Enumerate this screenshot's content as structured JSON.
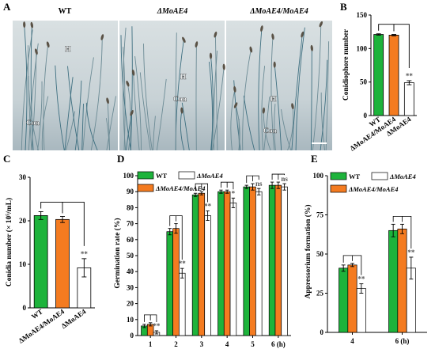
{
  "colors": {
    "wt": "#1db33b",
    "mutant_comp": "#f47b20",
    "mutant": "#ffffff",
    "micro_bg": "#c9d4d8"
  },
  "micrographs": {
    "panel": "A",
    "titles": [
      "WT",
      "ΔMoAE4",
      "ΔMoAE4/MoAE4"
    ],
    "labels": [
      [
        "H",
        "Con"
      ],
      [
        "H",
        "Con"
      ],
      [
        "H",
        "Con"
      ]
    ]
  },
  "chart_data": [
    {
      "panel": "B",
      "type": "bar",
      "ylabel": "Conidiophore number",
      "ylim": [
        0,
        150
      ],
      "yticks": [
        0,
        50,
        100,
        150
      ],
      "categories": [
        "WT",
        "ΔMoAE4/MoAE4",
        "ΔMoAE4"
      ],
      "values": [
        121,
        120,
        49
      ],
      "errors": [
        1,
        1,
        3
      ],
      "significance": [
        "",
        "",
        "**"
      ]
    },
    {
      "panel": "C",
      "type": "bar",
      "ylabel": "Conidia number (× 10⁵/mL)",
      "ylim": [
        0,
        30
      ],
      "yticks": [
        0,
        10,
        20,
        30
      ],
      "categories": [
        "WT",
        "ΔMoAE4/MoAE4",
        "ΔMoAE4"
      ],
      "values": [
        21.2,
        20.3,
        9.2
      ],
      "errors": [
        0.9,
        0.7,
        2.1
      ],
      "significance": [
        "",
        "",
        "**"
      ]
    },
    {
      "panel": "D",
      "type": "bar",
      "ylabel": "Germination rate (%)",
      "ylim": [
        0,
        100
      ],
      "yticks": [
        0,
        10,
        20,
        30,
        40,
        50,
        60,
        70,
        80,
        90,
        100
      ],
      "categories": [
        "1",
        "2",
        "3",
        "4",
        "5",
        "6 (h)"
      ],
      "legend": [
        "WT",
        "ΔMoAE4",
        "ΔMoAE4/MoAE4"
      ],
      "series": [
        {
          "name": "WT",
          "values": [
            6,
            65,
            88,
            90,
            93,
            94
          ],
          "errors": [
            1,
            2,
            1,
            1,
            1,
            2
          ]
        },
        {
          "name": "ΔMoAE4/MoAE4",
          "values": [
            7,
            67,
            89,
            90,
            93,
            94
          ],
          "errors": [
            1,
            3,
            1,
            1,
            2,
            2
          ]
        },
        {
          "name": "ΔMoAE4",
          "values": [
            2,
            39,
            75,
            83,
            90,
            93
          ],
          "errors": [
            1,
            3,
            3,
            3,
            2,
            2
          ]
        }
      ],
      "significance": [
        "**",
        "**",
        "**",
        "*",
        "ns",
        "ns"
      ]
    },
    {
      "panel": "E",
      "type": "bar",
      "ylabel": "Appressorium formation (%)",
      "ylim": [
        0,
        100
      ],
      "yticks": [
        0,
        25,
        50,
        75,
        100
      ],
      "categories": [
        "4",
        "6 (h)"
      ],
      "legend": [
        "WT",
        "ΔMoAE4",
        "ΔMoAE4/MoAE4"
      ],
      "series": [
        {
          "name": "WT",
          "values": [
            41,
            65
          ],
          "errors": [
            2,
            4
          ]
        },
        {
          "name": "ΔMoAE4/MoAE4",
          "values": [
            43,
            66
          ],
          "errors": [
            1,
            3
          ]
        },
        {
          "name": "ΔMoAE4",
          "values": [
            28,
            41
          ],
          "errors": [
            3,
            7
          ]
        }
      ],
      "significance": [
        "**",
        "**"
      ]
    }
  ]
}
